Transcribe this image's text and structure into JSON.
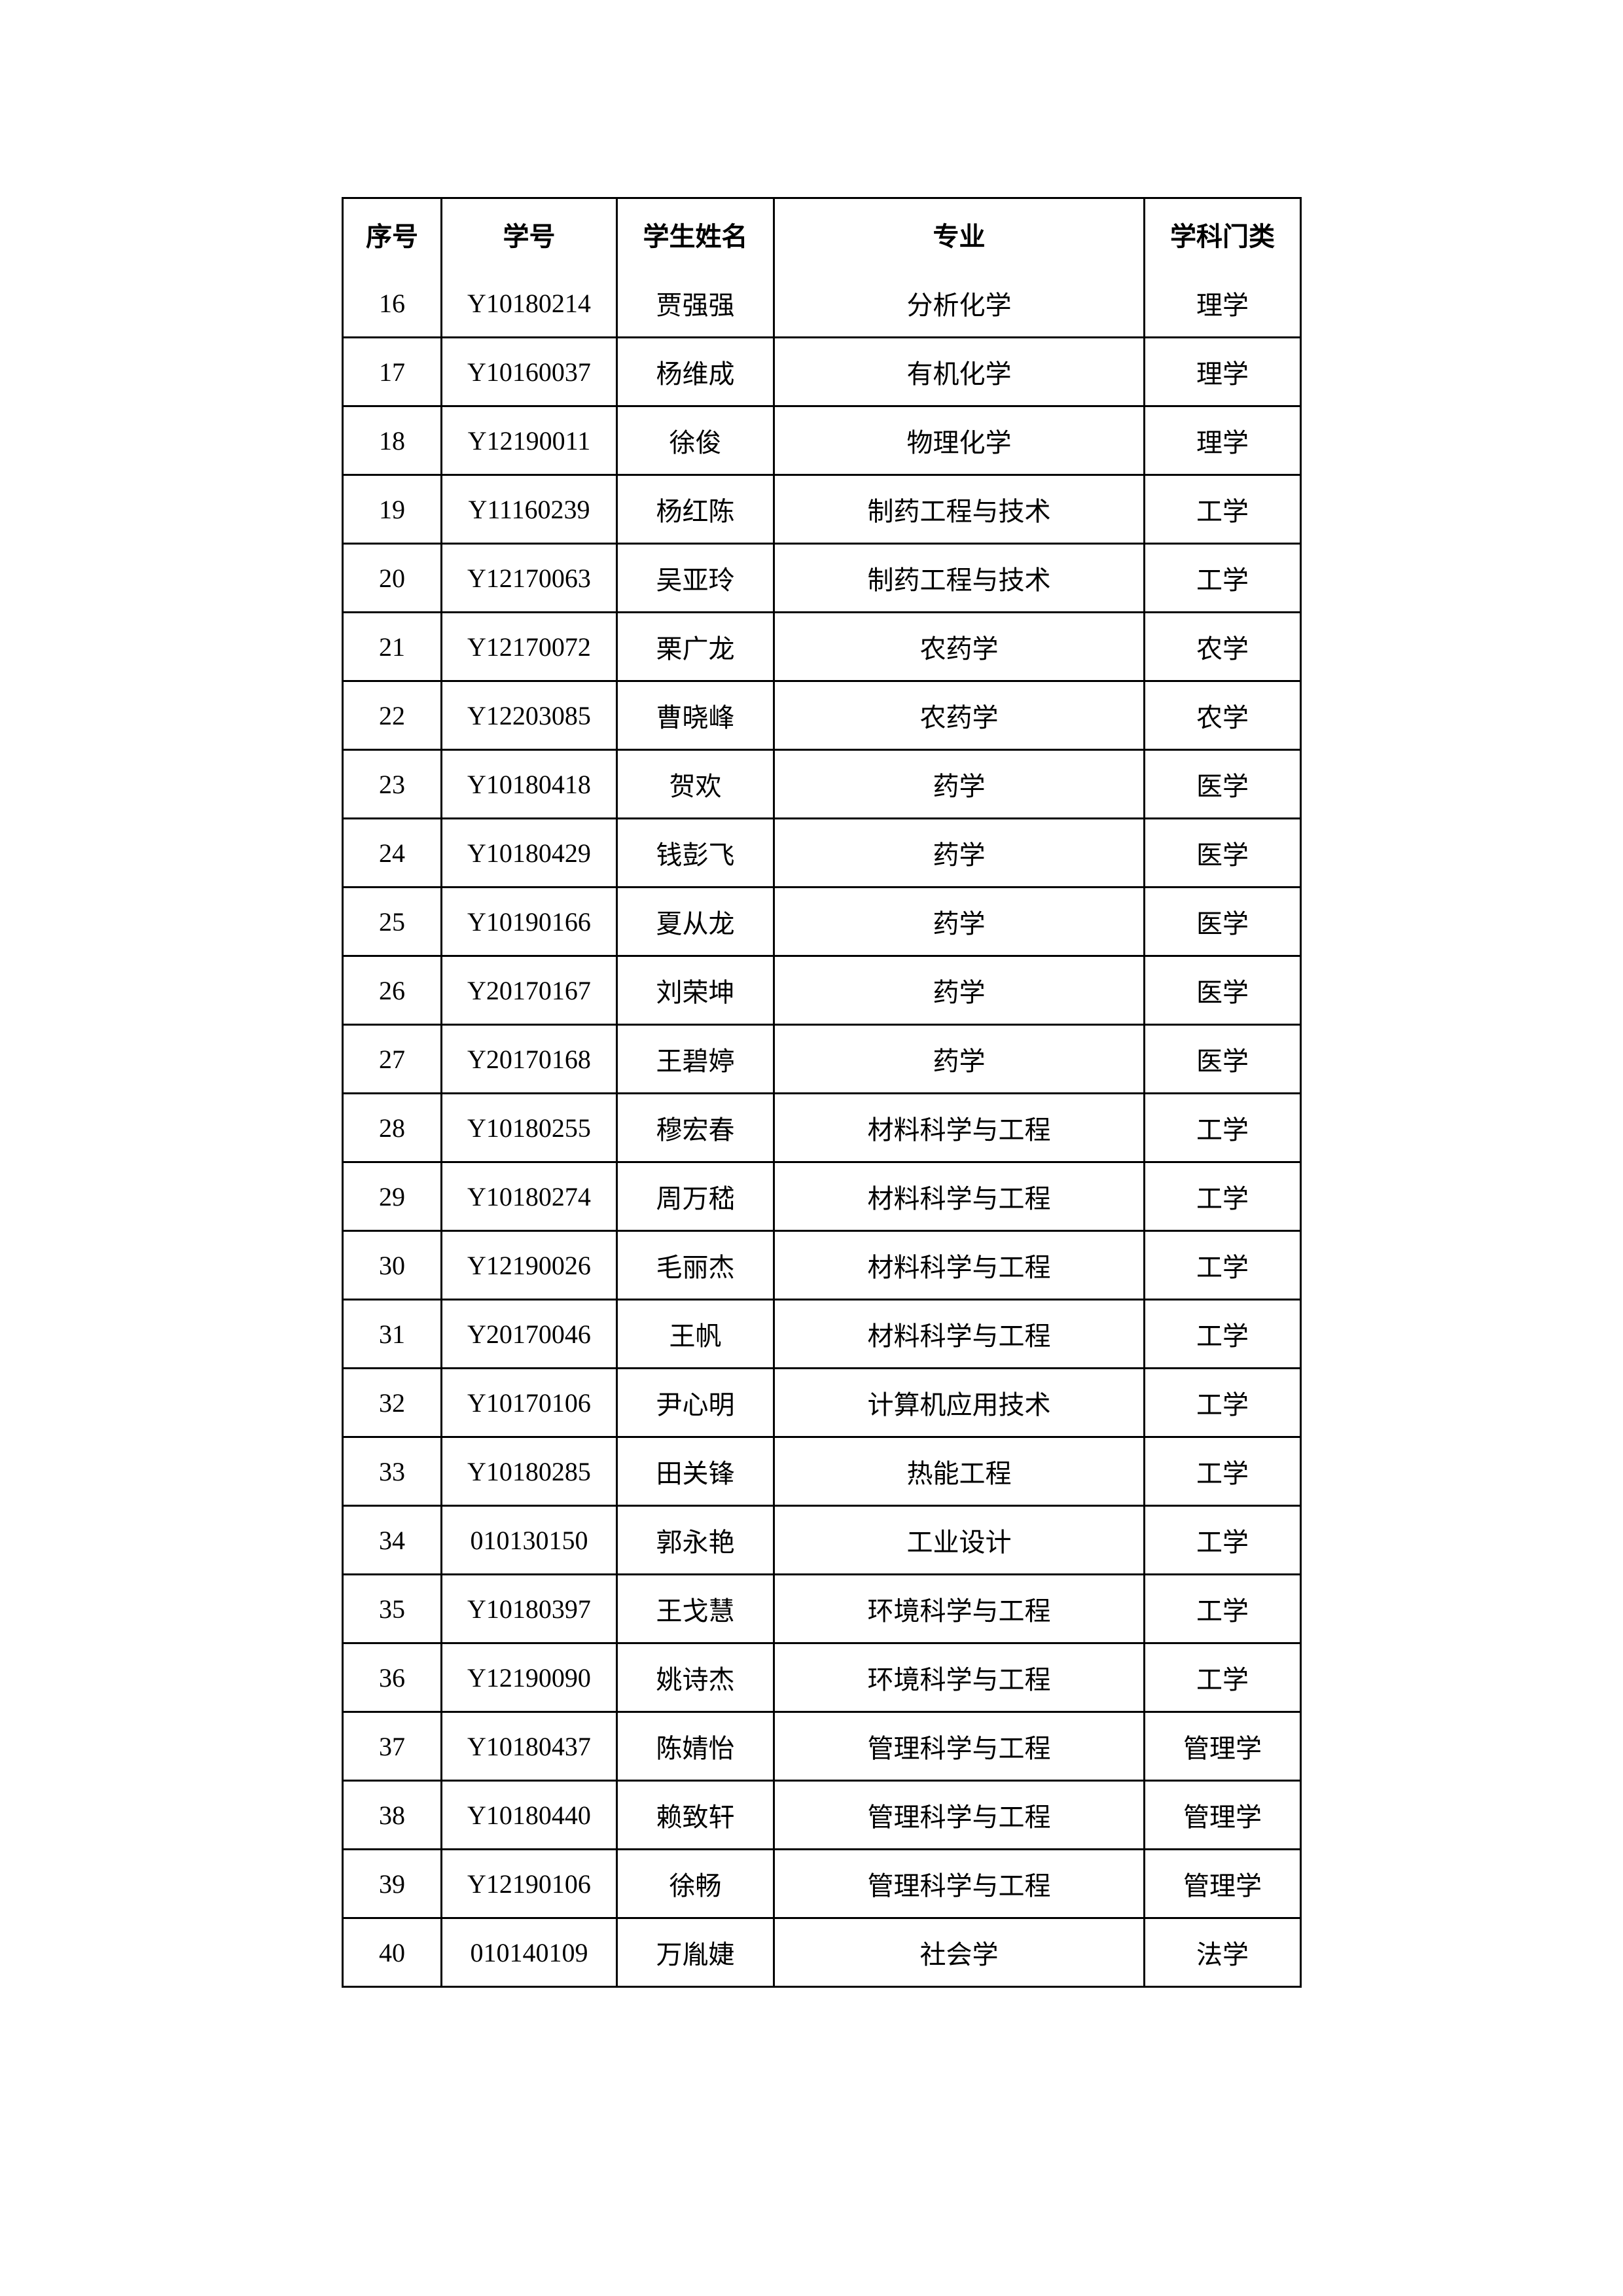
{
  "table": {
    "headers": [
      "序号",
      "学号",
      "学生姓名",
      "专业",
      "学科门类"
    ],
    "rows": [
      [
        "16",
        "Y10180214",
        "贾强强",
        "分析化学",
        "理学"
      ],
      [
        "17",
        "Y10160037",
        "杨维成",
        "有机化学",
        "理学"
      ],
      [
        "18",
        "Y12190011",
        "徐俊",
        "物理化学",
        "理学"
      ],
      [
        "19",
        "Y11160239",
        "杨红陈",
        "制药工程与技术",
        "工学"
      ],
      [
        "20",
        "Y12170063",
        "吴亚玲",
        "制药工程与技术",
        "工学"
      ],
      [
        "21",
        "Y12170072",
        "栗广龙",
        "农药学",
        "农学"
      ],
      [
        "22",
        "Y12203085",
        "曹晓峰",
        "农药学",
        "农学"
      ],
      [
        "23",
        "Y10180418",
        "贺欢",
        "药学",
        "医学"
      ],
      [
        "24",
        "Y10180429",
        "钱彭飞",
        "药学",
        "医学"
      ],
      [
        "25",
        "Y10190166",
        "夏从龙",
        "药学",
        "医学"
      ],
      [
        "26",
        "Y20170167",
        "刘荣坤",
        "药学",
        "医学"
      ],
      [
        "27",
        "Y20170168",
        "王碧婷",
        "药学",
        "医学"
      ],
      [
        "28",
        "Y10180255",
        "穆宏春",
        "材料科学与工程",
        "工学"
      ],
      [
        "29",
        "Y10180274",
        "周万嵇",
        "材料科学与工程",
        "工学"
      ],
      [
        "30",
        "Y12190026",
        "毛丽杰",
        "材料科学与工程",
        "工学"
      ],
      [
        "31",
        "Y20170046",
        "王帆",
        "材料科学与工程",
        "工学"
      ],
      [
        "32",
        "Y10170106",
        "尹心明",
        "计算机应用技术",
        "工学"
      ],
      [
        "33",
        "Y10180285",
        "田关锋",
        "热能工程",
        "工学"
      ],
      [
        "34",
        "010130150",
        "郭永艳",
        "工业设计",
        "工学"
      ],
      [
        "35",
        "Y10180397",
        "王戈慧",
        "环境科学与工程",
        "工学"
      ],
      [
        "36",
        "Y12190090",
        "姚诗杰",
        "环境科学与工程",
        "工学"
      ],
      [
        "37",
        "Y10180437",
        "陈婧怡",
        "管理科学与工程",
        "管理学"
      ],
      [
        "38",
        "Y10180440",
        "赖致轩",
        "管理科学与工程",
        "管理学"
      ],
      [
        "39",
        "Y12190106",
        "徐畅",
        "管理科学与工程",
        "管理学"
      ],
      [
        "40",
        "010140109",
        "万胤婕",
        "社会学",
        "法学"
      ]
    ]
  }
}
